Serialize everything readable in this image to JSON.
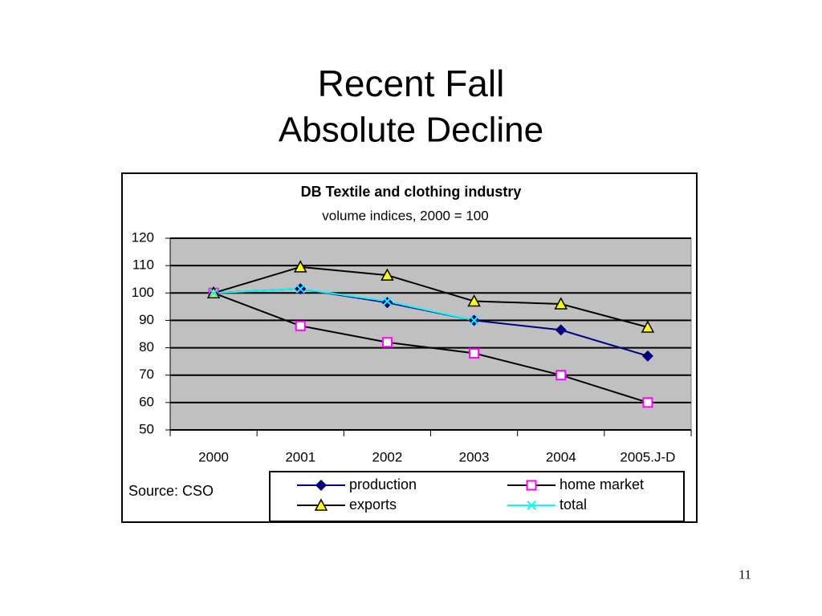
{
  "slide": {
    "title": "Recent Fall",
    "subtitle": "Absolute Decline",
    "page_number": "11"
  },
  "chart_data": {
    "type": "line",
    "title": "DB Textile and clothing industry",
    "subtitle": "volume indices, 2000 = 100",
    "source": "Source: CSO",
    "categories": [
      "2000",
      "2001",
      "2002",
      "2003",
      "2004",
      "2005.J-D"
    ],
    "series": [
      {
        "name": "production",
        "color": "#000080",
        "marker": "diamond",
        "values": [
          100,
          101.5,
          96.5,
          90,
          86.5,
          77
        ]
      },
      {
        "name": "home market",
        "color": "#000000",
        "marker_color": "#ff00ff",
        "marker": "square",
        "values": [
          100,
          88,
          82,
          78,
          70,
          60
        ]
      },
      {
        "name": "exports",
        "color": "#000000",
        "marker_color": "#ffff00",
        "marker": "triangle",
        "values": [
          100,
          109.5,
          106.5,
          97,
          96,
          87.5
        ]
      },
      {
        "name": "total",
        "color": "#00ffff",
        "marker": "x",
        "values": [
          100,
          101.5,
          97,
          90,
          null,
          null
        ]
      }
    ],
    "ylim": [
      50,
      120
    ],
    "yticks": [
      50,
      60,
      70,
      80,
      90,
      100,
      110,
      120
    ],
    "grid": true
  }
}
